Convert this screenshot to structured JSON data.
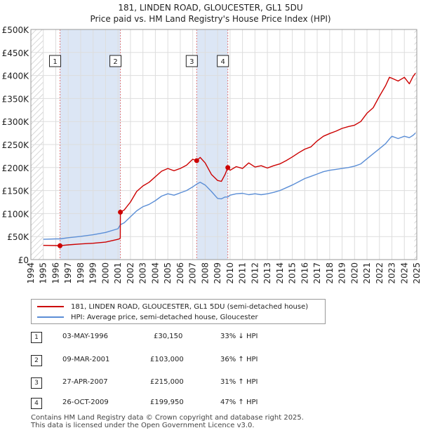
{
  "header": {
    "line1": "181, LINDEN ROAD, GLOUCESTER, GL1 5DU",
    "line2": "Price paid vs. HM Land Registry's House Price Index (HPI)"
  },
  "legend": {
    "property": "181, LINDEN ROAD, GLOUCESTER, GL1 5DU (semi-detached house)",
    "hpi": "HPI: Average price, semi-detached house, Gloucester"
  },
  "colors": {
    "property": "#cc0000",
    "hpi": "#5b8ed6",
    "shade": "#dce6f5",
    "grid": "#dddddd",
    "vline": "#e07a7a"
  },
  "sales": [
    {
      "num": "1",
      "date": "03-MAY-1996",
      "price": "£30,150",
      "hpi": "33% ↓ HPI"
    },
    {
      "num": "2",
      "date": "09-MAR-2001",
      "price": "£103,000",
      "hpi": "36% ↑ HPI"
    },
    {
      "num": "3",
      "date": "27-APR-2007",
      "price": "£215,000",
      "hpi": "31% ↑ HPI"
    },
    {
      "num": "4",
      "date": "26-OCT-2009",
      "price": "£199,950",
      "hpi": "47% ↑ HPI"
    }
  ],
  "footer": {
    "line1": "Contains HM Land Registry data © Crown copyright and database right 2025.",
    "line2": "This data is licensed under the Open Government Licence v3.0."
  },
  "chart_data": {
    "type": "line",
    "title": "181, LINDEN ROAD, GLOUCESTER, GL1 5DU",
    "subtitle": "Price paid vs. HM Land Registry's House Price Index (HPI)",
    "xlabel": "",
    "ylabel": "",
    "xlim": [
      1994,
      2025
    ],
    "ylim": [
      0,
      500000
    ],
    "grid": true,
    "x_ticks": [
      1994,
      1995,
      1996,
      1997,
      1998,
      1999,
      2000,
      2001,
      2002,
      2003,
      2004,
      2005,
      2006,
      2007,
      2008,
      2009,
      2010,
      2011,
      2012,
      2013,
      2014,
      2015,
      2016,
      2017,
      2018,
      2019,
      2020,
      2021,
      2022,
      2023,
      2024,
      2025
    ],
    "y_ticks": [
      {
        "value": 0,
        "label": "£0"
      },
      {
        "value": 50000,
        "label": "£50K"
      },
      {
        "value": 100000,
        "label": "£100K"
      },
      {
        "value": 150000,
        "label": "£150K"
      },
      {
        "value": 200000,
        "label": "£200K"
      },
      {
        "value": 250000,
        "label": "£250K"
      },
      {
        "value": 300000,
        "label": "£300K"
      },
      {
        "value": 350000,
        "label": "£350K"
      },
      {
        "value": 400000,
        "label": "£400K"
      },
      {
        "value": 450000,
        "label": "£450K"
      },
      {
        "value": 500000,
        "label": "£500K"
      }
    ],
    "shaded_ranges": [
      [
        1996.34,
        2001.19
      ],
      [
        2007.32,
        2009.82
      ]
    ],
    "hatched_ranges": [
      [
        1994.0,
        1995.0
      ],
      [
        2024.8,
        2025.0
      ]
    ],
    "sale_markers": [
      {
        "label": "1",
        "x": 1996.34,
        "y": 30150
      },
      {
        "label": "2",
        "x": 2001.19,
        "y": 103000
      },
      {
        "label": "3",
        "x": 2007.32,
        "y": 215000
      },
      {
        "label": "4",
        "x": 2009.82,
        "y": 199950
      }
    ],
    "series": [
      {
        "name": "181, LINDEN ROAD, GLOUCESTER, GL1 5DU (semi-detached house)",
        "color": "#cc0000",
        "x": [
          1995.0,
          1996.0,
          1996.34,
          1997.0,
          1998.0,
          1999.0,
          2000.0,
          2001.0,
          2001.18,
          2001.19,
          2001.5,
          2002.0,
          2002.5,
          2003.0,
          2003.5,
          2004.0,
          2004.5,
          2005.0,
          2005.5,
          2006.0,
          2006.5,
          2007.0,
          2007.32,
          2007.6,
          2008.0,
          2008.5,
          2009.0,
          2009.3,
          2009.6,
          2009.82,
          2010.0,
          2010.5,
          2011.0,
          2011.5,
          2012.0,
          2012.5,
          2013.0,
          2013.5,
          2014.0,
          2014.5,
          2015.0,
          2015.5,
          2016.0,
          2016.5,
          2017.0,
          2017.5,
          2018.0,
          2018.5,
          2019.0,
          2019.5,
          2020.0,
          2020.5,
          2021.0,
          2021.5,
          2022.0,
          2022.5,
          2022.8,
          2023.0,
          2023.5,
          2024.0,
          2024.4,
          2024.7,
          2024.9
        ],
        "y": [
          31000,
          30500,
          30150,
          32000,
          34000,
          35500,
          38000,
          44000,
          46000,
          103000,
          108000,
          125000,
          148000,
          160000,
          168000,
          180000,
          192000,
          198000,
          193000,
          198000,
          205000,
          218000,
          215000,
          222000,
          210000,
          185000,
          172000,
          170000,
          185000,
          199950,
          194000,
          202000,
          198000,
          210000,
          201000,
          204000,
          199000,
          204000,
          208000,
          215000,
          223000,
          232000,
          240000,
          245000,
          258000,
          268000,
          274000,
          279000,
          285000,
          289000,
          292000,
          300000,
          318000,
          330000,
          355000,
          378000,
          396000,
          394000,
          388000,
          396000,
          382000,
          398000,
          405000
        ]
      },
      {
        "name": "HPI: Average price, semi-detached house, Gloucester",
        "color": "#5b8ed6",
        "x": [
          1995.0,
          1996.0,
          1996.34,
          1997.0,
          1998.0,
          1999.0,
          2000.0,
          2001.0,
          2001.19,
          2001.5,
          2002.0,
          2002.5,
          2003.0,
          2003.5,
          2004.0,
          2004.5,
          2005.0,
          2005.5,
          2006.0,
          2006.5,
          2007.0,
          2007.32,
          2007.6,
          2008.0,
          2008.5,
          2009.0,
          2009.3,
          2009.6,
          2009.82,
          2010.0,
          2010.5,
          2011.0,
          2011.5,
          2012.0,
          2012.5,
          2013.0,
          2013.5,
          2014.0,
          2014.5,
          2015.0,
          2015.5,
          2016.0,
          2016.5,
          2017.0,
          2017.5,
          2018.0,
          2018.5,
          2019.0,
          2019.5,
          2020.0,
          2020.5,
          2021.0,
          2021.5,
          2022.0,
          2022.5,
          2022.8,
          2023.0,
          2023.5,
          2024.0,
          2024.4,
          2024.7,
          2024.9
        ],
        "y": [
          44000,
          45000,
          45000,
          47500,
          50500,
          54000,
          59000,
          67000,
          75800,
          80000,
          93000,
          106000,
          115000,
          120000,
          128000,
          138000,
          143000,
          140000,
          145000,
          150000,
          158000,
          164000,
          168000,
          162000,
          148000,
          133000,
          132000,
          136000,
          136000,
          140000,
          143000,
          144000,
          141000,
          143000,
          141000,
          143000,
          146000,
          150000,
          156000,
          162000,
          169000,
          176000,
          181000,
          186000,
          191000,
          194000,
          196000,
          198000,
          200000,
          203000,
          208000,
          219000,
          230000,
          241000,
          252000,
          262000,
          268000,
          263000,
          268000,
          265000,
          270000,
          275000
        ]
      }
    ]
  }
}
